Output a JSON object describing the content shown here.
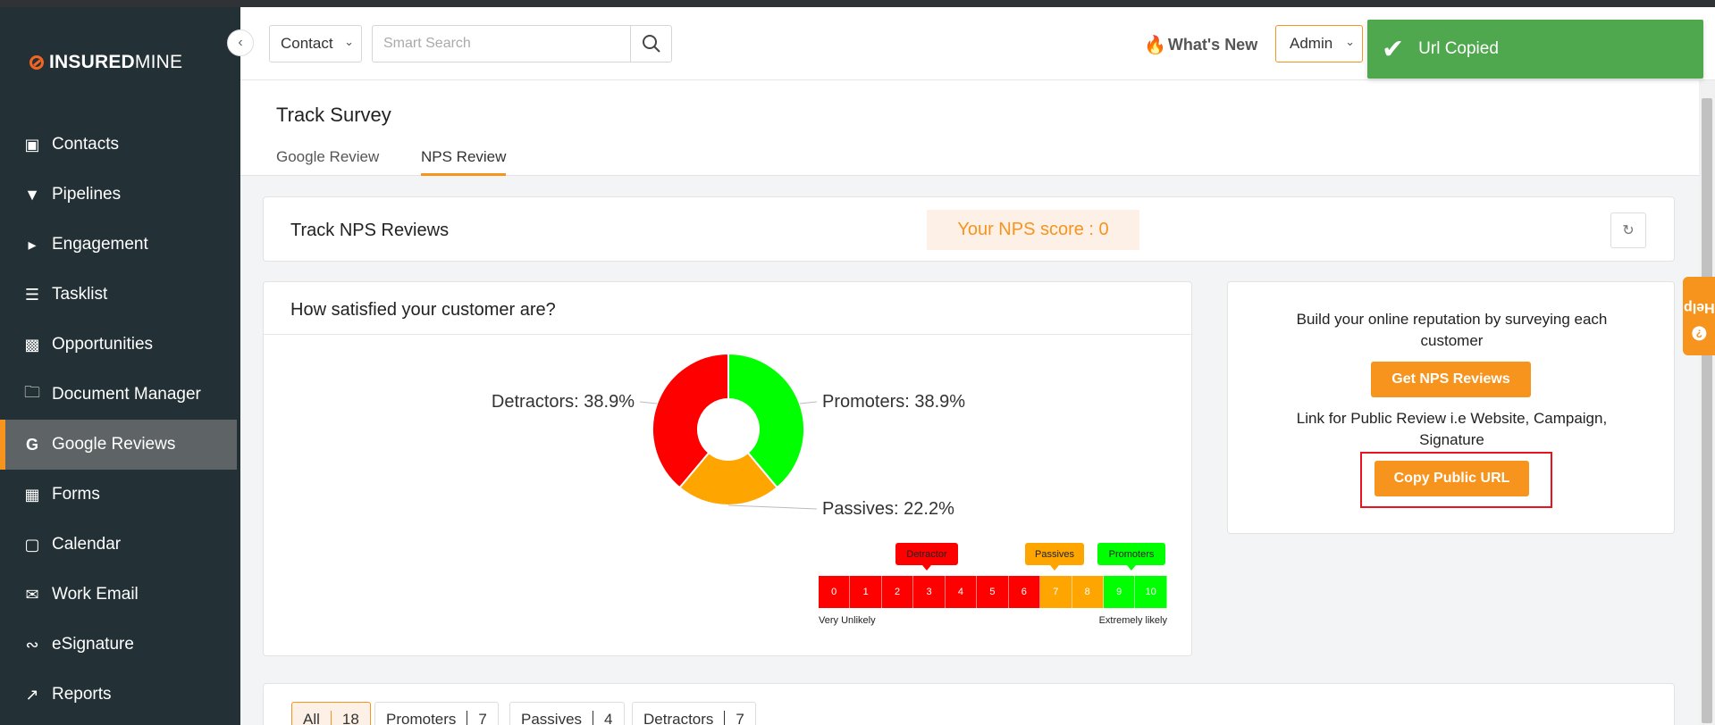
{
  "brand": {
    "logo_bold": "INSURED",
    "logo_light": "MINE"
  },
  "sidebar": {
    "items": [
      {
        "label": "Contacts",
        "icon": "contacts-icon"
      },
      {
        "label": "Pipelines",
        "icon": "pipelines-icon"
      },
      {
        "label": "Engagement",
        "icon": "megaphone-icon"
      },
      {
        "label": "Tasklist",
        "icon": "tasklist-icon"
      },
      {
        "label": "Opportunities",
        "icon": "opportunities-icon"
      },
      {
        "label": "Document Manager",
        "icon": "folder-icon"
      },
      {
        "label": "Google Reviews",
        "icon": "google-icon",
        "active": true
      },
      {
        "label": "Forms",
        "icon": "forms-icon"
      },
      {
        "label": "Calendar",
        "icon": "calendar-icon"
      },
      {
        "label": "Work Email",
        "icon": "mail-icon"
      },
      {
        "label": "eSignature",
        "icon": "signature-icon"
      },
      {
        "label": "Reports",
        "icon": "reports-icon"
      }
    ]
  },
  "header": {
    "contact_select": "Contact",
    "search_placeholder": "Smart Search",
    "whats_new": "What's New",
    "admin_select": "Admin"
  },
  "toast": {
    "message": "Url Copied"
  },
  "survey": {
    "title": "Track Survey",
    "tabs": [
      "Google Review",
      "NPS Review"
    ],
    "active_tab": "NPS Review"
  },
  "nps": {
    "title": "Track NPS Reviews",
    "score_label": "Your NPS score : 0"
  },
  "chart_card": {
    "title": "How satisfied your customer are?"
  },
  "chart_data": {
    "type": "pie",
    "categories": [
      "Promoters",
      "Passives",
      "Detractors"
    ],
    "values": [
      38.9,
      22.2,
      38.9
    ],
    "labels": [
      "Promoters: 38.9%",
      "Passives: 22.2%",
      "Detractors: 38.9%"
    ],
    "colors": [
      "#00ff00",
      "#ffa500",
      "#ff0000"
    ],
    "donut": true
  },
  "scale": {
    "cells": [
      "0",
      "1",
      "2",
      "3",
      "4",
      "5",
      "6",
      "7",
      "8",
      "9",
      "10"
    ],
    "detractor_tag": "Detractor",
    "passives_tag": "Passives",
    "promoters_tag": "Promoters",
    "low_label": "Very Unlikely",
    "high_label": "Extremely likely",
    "colors": {
      "detractor": "#ff0000",
      "passive": "#ffa500",
      "promoter": "#00ff00"
    }
  },
  "side": {
    "text1": "Build your online reputation by surveying each customer",
    "get_button": "Get NPS Reviews",
    "text2": "Link for Public Review i.e Website, Campaign, Signature",
    "copy_button": "Copy Public URL"
  },
  "filters": [
    {
      "label": "All",
      "count": "18",
      "active": true
    },
    {
      "label": "Promoters",
      "count": "7"
    },
    {
      "label": "Passives",
      "count": "4"
    },
    {
      "label": "Detractors",
      "count": "7"
    }
  ],
  "help": {
    "label": "Help"
  },
  "colors": {
    "accent": "#f7941d",
    "sidebar": "#233136",
    "toast": "#4fa84e"
  }
}
